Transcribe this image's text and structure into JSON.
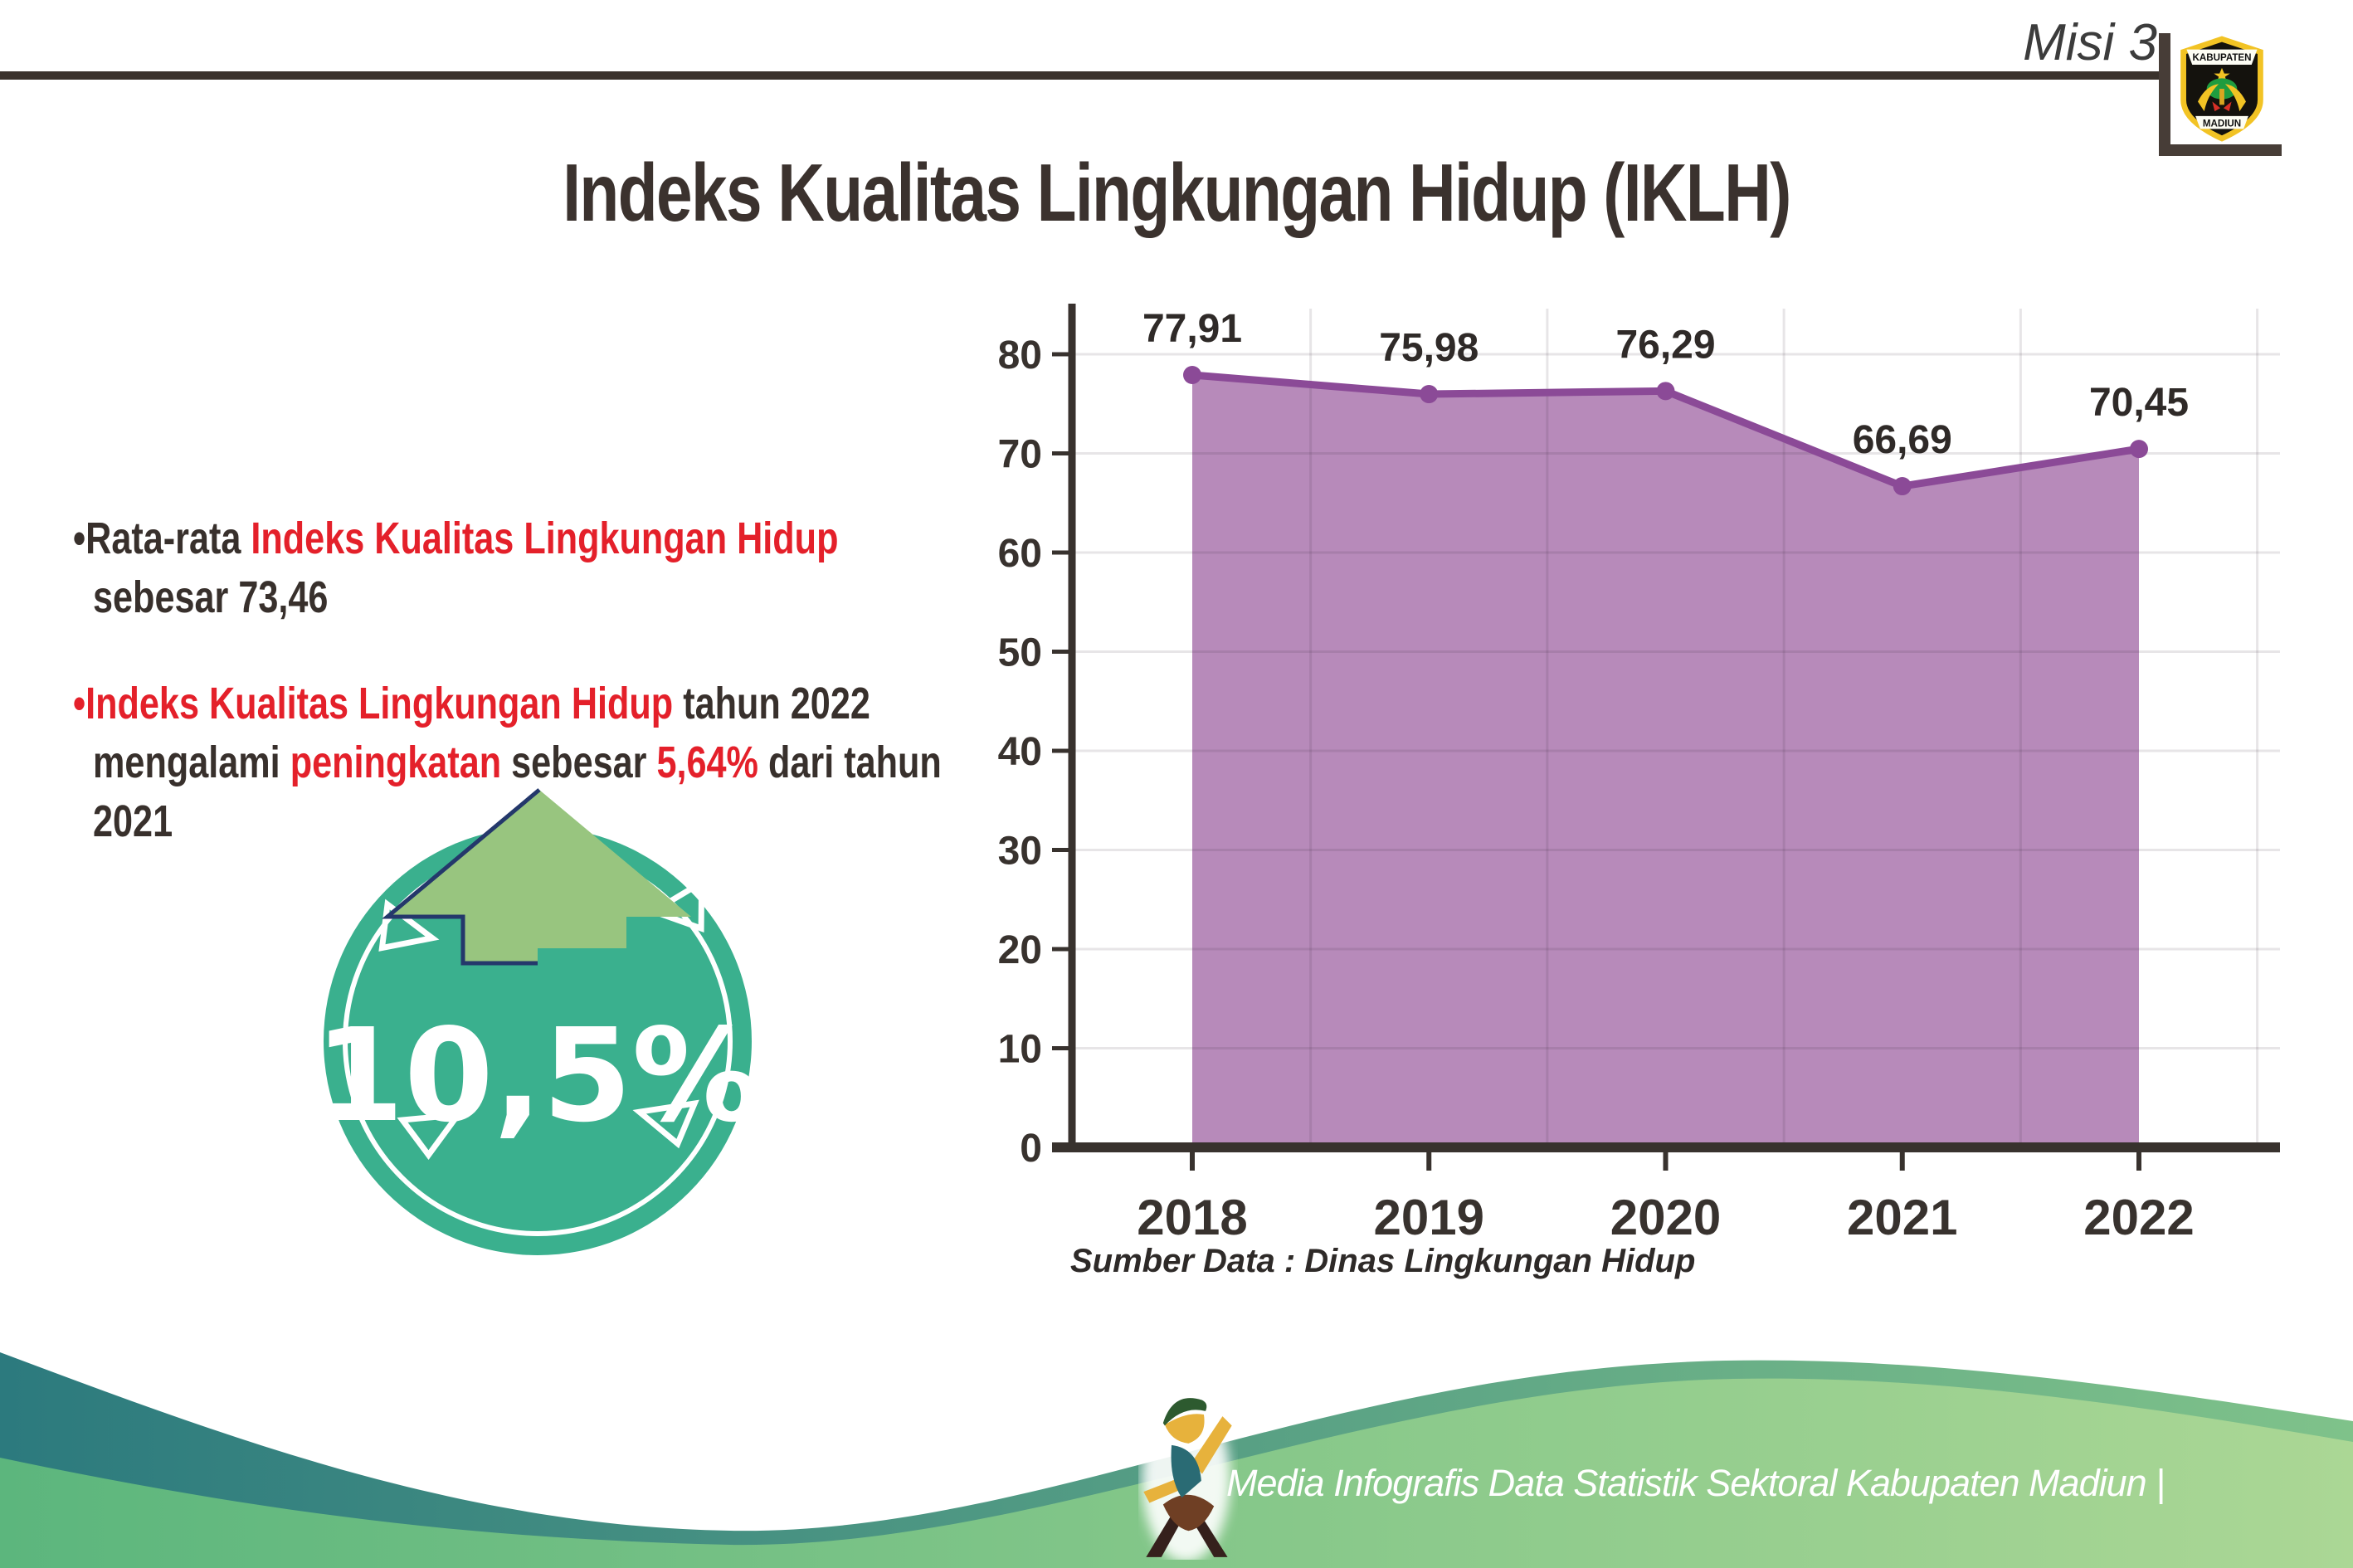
{
  "header": {
    "misi_label": "Misi 3",
    "logo": {
      "top": "KABUPATEN",
      "bottom": "MADIUN"
    }
  },
  "title": "Indeks Kualitas Lingkungan Hidup (IKLH)",
  "bullets": {
    "b1": {
      "s1": "•Rata-rata ",
      "s2": "Indeks Kualitas Lingkungan Hidup",
      "s3": " sebesar 73,46"
    },
    "b2": {
      "s1": "•Indeks Kualitas Lingkungan Hidup",
      "s2": " tahun 2022 mengalami ",
      "s3": "peningkatan",
      "s4": " sebesar ",
      "s5": "5,64%",
      "s6": " dari tahun 2021"
    }
  },
  "badge": {
    "value": "10,5%"
  },
  "chart_data": {
    "type": "area",
    "categories": [
      "2018",
      "2019",
      "2020",
      "2021",
      "2022"
    ],
    "values": [
      77.91,
      75.98,
      76.29,
      66.69,
      70.45
    ],
    "value_labels": [
      "77,91",
      "75,98",
      "76,29",
      "66,69",
      "70,45"
    ],
    "yticks": [
      0,
      10,
      20,
      30,
      40,
      50,
      60,
      70,
      80
    ],
    "ylim": [
      0,
      84
    ],
    "grid": true,
    "legend": "none",
    "title": "",
    "xlabel": "",
    "ylabel": "",
    "line_color": "#8b4a97",
    "fill_color": "#b78aba",
    "marker_color": "#8b4a97",
    "axis_color": "#38322e",
    "label_color": "#2f2a28"
  },
  "source": "Sumber Data : Dinas Lingkungan Hidup",
  "footer": {
    "text": "Media Infografis Data Statistik Sektoral Kabupaten Madiun |"
  },
  "colors": {
    "red_accent": "#e4202a",
    "dark_text": "#38302c",
    "badge_teal": "#3ab08e",
    "arrow_green": "#98c57f",
    "footer_teal": "#2c7a7e",
    "footer_green": "#7fc28a"
  }
}
